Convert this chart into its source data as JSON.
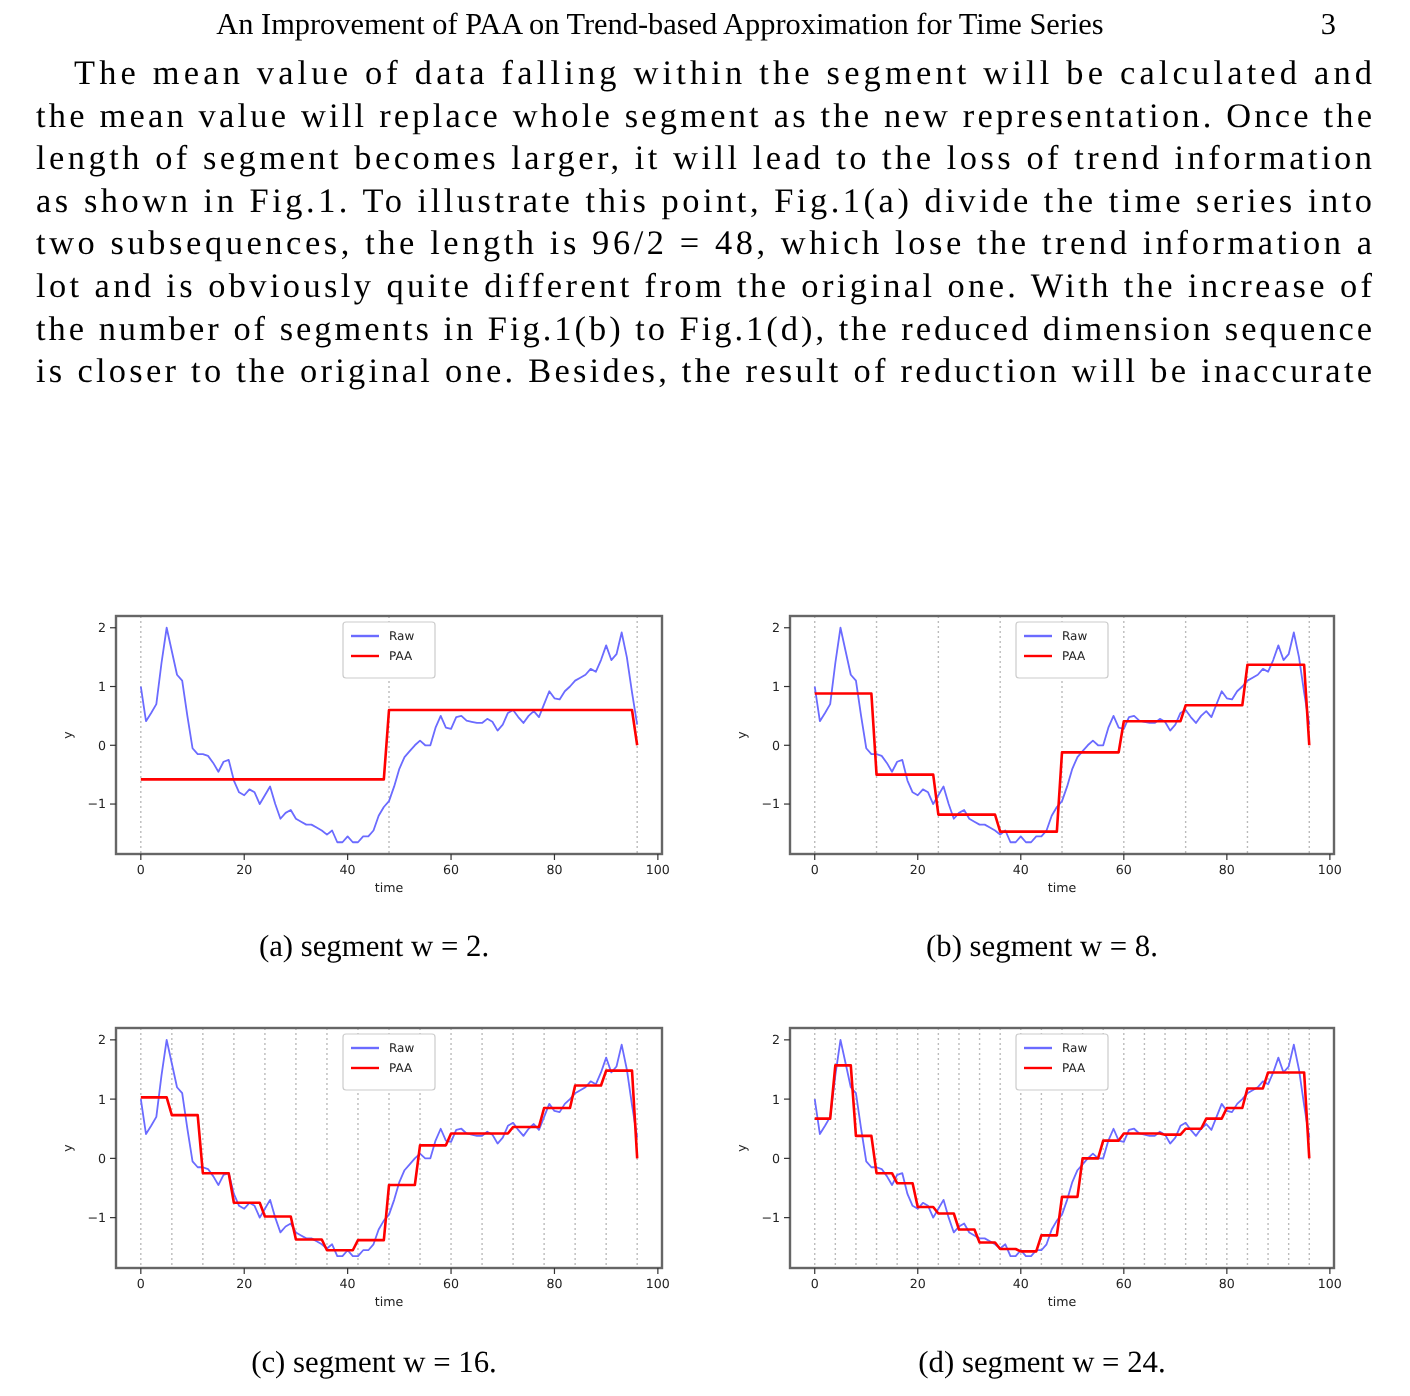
{
  "chart_data": [
    {
      "type": "other",
      "title": "An Improvement of PAA on Trend-based Approximation for Time Series",
      "subtitle": "3",
      "annotations": [
        "The mean value of data falling within the segment will be calculated and",
        "the mean value will replace whole segment as the new representation. Once the",
        "length of segment becomes larger, it will lead to the loss of trend information",
        "as shown in Fig.1. To illustrate this point, Fig.1(a) divide the time series into",
        "two subsequences, the length is 96/2 = 48, which lose the trend information a",
        "lot and is obviously quite different from the original one. With the increase of",
        "the number of segments in Fig.1(b) to Fig.1(d), the reduced dimension sequence",
        "is closer to the original one. Besides, the result of reduction will be inaccurate"
      ]
    },
    {
      "type": "line",
      "xlabel": "time",
      "ylabel": "y",
      "annotations": [
        "(a) segment w = 2."
      ],
      "legend": "top",
      "grid": false,
      "xlim": [
        -4.8,
        100.8
      ],
      "ylim": [
        -1.85,
        2.2
      ],
      "xticks": [
        0,
        20,
        40,
        60,
        80,
        100
      ],
      "yticks": [
        -1,
        0,
        1,
        2
      ],
      "x": [
        0,
        1,
        2,
        3,
        4,
        5,
        6,
        7,
        8,
        9,
        10,
        11,
        12,
        13,
        14,
        15,
        16,
        17,
        18,
        19,
        20,
        21,
        22,
        23,
        24,
        25,
        26,
        27,
        28,
        29,
        30,
        31,
        32,
        33,
        34,
        35,
        36,
        37,
        38,
        39,
        40,
        41,
        42,
        43,
        44,
        45,
        46,
        47,
        48,
        49,
        50,
        51,
        52,
        53,
        54,
        55,
        56,
        57,
        58,
        59,
        60,
        61,
        62,
        63,
        64,
        65,
        66,
        67,
        68,
        69,
        70,
        71,
        72,
        73,
        74,
        75,
        76,
        77,
        78,
        79,
        80,
        81,
        82,
        83,
        84,
        85,
        86,
        87,
        88,
        89,
        90,
        91,
        92,
        93,
        94,
        95,
        96
      ],
      "ref_lines": [
        {
          "axis": "x",
          "value": 0,
          "color": "#bbbbbb",
          "line_style": "dotted"
        },
        {
          "axis": "x",
          "value": 48,
          "color": "#bbbbbb",
          "line_style": "dotted"
        },
        {
          "axis": "x",
          "value": 96,
          "color": "#bbbbbb",
          "line_style": "dotted"
        }
      ],
      "series": [
        {
          "name": "Raw",
          "color": "#6b6bff",
          "values": [
            1.0,
            0.41,
            0.55,
            0.7,
            1.4,
            2.0,
            1.6,
            1.2,
            1.1,
            0.5,
            -0.05,
            -0.15,
            -0.15,
            -0.18,
            -0.3,
            -0.45,
            -0.28,
            -0.25,
            -0.6,
            -0.8,
            -0.85,
            -0.75,
            -0.8,
            -1.0,
            -0.85,
            -0.7,
            -1.0,
            -1.25,
            -1.15,
            -1.1,
            -1.25,
            -1.3,
            -1.35,
            -1.35,
            -1.4,
            -1.45,
            -1.52,
            -1.45,
            -1.65,
            -1.65,
            -1.55,
            -1.65,
            -1.65,
            -1.55,
            -1.55,
            -1.45,
            -1.2,
            -1.05,
            -0.95,
            -0.7,
            -0.4,
            -0.2,
            -0.1,
            0.0,
            0.08,
            0.0,
            0.0,
            0.3,
            0.5,
            0.3,
            0.28,
            0.48,
            0.5,
            0.42,
            0.4,
            0.38,
            0.38,
            0.45,
            0.4,
            0.25,
            0.35,
            0.55,
            0.6,
            0.48,
            0.38,
            0.5,
            0.58,
            0.48,
            0.7,
            0.92,
            0.8,
            0.78,
            0.92,
            1.0,
            1.1,
            1.15,
            1.2,
            1.3,
            1.25,
            1.45,
            1.7,
            1.45,
            1.55,
            1.92,
            1.5,
            0.9,
            0.35
          ]
        },
        {
          "name": "PAA",
          "color": "#ff0000",
          "x": [
            0,
            47,
            48,
            95,
            96
          ],
          "values": [
            -0.58,
            -0.58,
            0.6,
            0.6,
            0
          ]
        }
      ]
    },
    {
      "type": "line",
      "xlabel": "time",
      "ylabel": "y",
      "annotations": [
        "(b) segment w = 8."
      ],
      "legend": "top",
      "grid": false,
      "xlim": [
        -4.8,
        100.8
      ],
      "ylim": [
        -1.85,
        2.2
      ],
      "xticks": [
        0,
        20,
        40,
        60,
        80,
        100
      ],
      "yticks": [
        -1,
        0,
        1,
        2
      ],
      "x": [
        0,
        1,
        2,
        3,
        4,
        5,
        6,
        7,
        8,
        9,
        10,
        11,
        12,
        13,
        14,
        15,
        16,
        17,
        18,
        19,
        20,
        21,
        22,
        23,
        24,
        25,
        26,
        27,
        28,
        29,
        30,
        31,
        32,
        33,
        34,
        35,
        36,
        37,
        38,
        39,
        40,
        41,
        42,
        43,
        44,
        45,
        46,
        47,
        48,
        49,
        50,
        51,
        52,
        53,
        54,
        55,
        56,
        57,
        58,
        59,
        60,
        61,
        62,
        63,
        64,
        65,
        66,
        67,
        68,
        69,
        70,
        71,
        72,
        73,
        74,
        75,
        76,
        77,
        78,
        79,
        80,
        81,
        82,
        83,
        84,
        85,
        86,
        87,
        88,
        89,
        90,
        91,
        92,
        93,
        94,
        95,
        96
      ],
      "ref_lines": [
        {
          "axis": "x",
          "value": 0,
          "color": "#bbbbbb",
          "line_style": "dotted"
        },
        {
          "axis": "x",
          "value": 12,
          "color": "#bbbbbb",
          "line_style": "dotted"
        },
        {
          "axis": "x",
          "value": 24,
          "color": "#bbbbbb",
          "line_style": "dotted"
        },
        {
          "axis": "x",
          "value": 36,
          "color": "#bbbbbb",
          "line_style": "dotted"
        },
        {
          "axis": "x",
          "value": 48,
          "color": "#bbbbbb",
          "line_style": "dotted"
        },
        {
          "axis": "x",
          "value": 60,
          "color": "#bbbbbb",
          "line_style": "dotted"
        },
        {
          "axis": "x",
          "value": 72,
          "color": "#bbbbbb",
          "line_style": "dotted"
        },
        {
          "axis": "x",
          "value": 84,
          "color": "#bbbbbb",
          "line_style": "dotted"
        },
        {
          "axis": "x",
          "value": 96,
          "color": "#bbbbbb",
          "line_style": "dotted"
        }
      ],
      "series": [
        {
          "name": "Raw",
          "color": "#6b6bff",
          "values": [
            1.0,
            0.41,
            0.55,
            0.7,
            1.4,
            2.0,
            1.6,
            1.2,
            1.1,
            0.5,
            -0.05,
            -0.15,
            -0.15,
            -0.18,
            -0.3,
            -0.45,
            -0.28,
            -0.25,
            -0.6,
            -0.8,
            -0.85,
            -0.75,
            -0.8,
            -1.0,
            -0.85,
            -0.7,
            -1.0,
            -1.25,
            -1.15,
            -1.1,
            -1.25,
            -1.3,
            -1.35,
            -1.35,
            -1.4,
            -1.45,
            -1.52,
            -1.45,
            -1.65,
            -1.65,
            -1.55,
            -1.65,
            -1.65,
            -1.55,
            -1.55,
            -1.45,
            -1.2,
            -1.05,
            -0.95,
            -0.7,
            -0.4,
            -0.2,
            -0.1,
            0.0,
            0.08,
            0.0,
            0.0,
            0.3,
            0.5,
            0.3,
            0.28,
            0.48,
            0.5,
            0.42,
            0.4,
            0.38,
            0.38,
            0.45,
            0.4,
            0.25,
            0.35,
            0.55,
            0.6,
            0.48,
            0.38,
            0.5,
            0.58,
            0.48,
            0.7,
            0.92,
            0.8,
            0.78,
            0.92,
            1.0,
            1.1,
            1.15,
            1.2,
            1.3,
            1.25,
            1.45,
            1.7,
            1.45,
            1.55,
            1.92,
            1.5,
            0.9,
            0.35
          ]
        },
        {
          "name": "PAA",
          "color": "#ff0000",
          "x": [
            0,
            11,
            12,
            23,
            24,
            35,
            36,
            47,
            48,
            59,
            60,
            71,
            72,
            83,
            84,
            95,
            96
          ],
          "values": [
            0.88,
            0.88,
            -0.5,
            -0.5,
            -1.18,
            -1.18,
            -1.47,
            -1.47,
            -0.12,
            -0.12,
            0.41,
            0.41,
            0.68,
            0.68,
            1.37,
            1.37,
            0
          ]
        }
      ]
    },
    {
      "type": "line",
      "xlabel": "time",
      "ylabel": "y",
      "annotations": [
        "(c) segment w = 16."
      ],
      "legend": "top",
      "grid": false,
      "xlim": [
        -4.8,
        100.8
      ],
      "ylim": [
        -1.85,
        2.2
      ],
      "xticks": [
        0,
        20,
        40,
        60,
        80,
        100
      ],
      "yticks": [
        -1,
        0,
        1,
        2
      ],
      "x": [
        0,
        1,
        2,
        3,
        4,
        5,
        6,
        7,
        8,
        9,
        10,
        11,
        12,
        13,
        14,
        15,
        16,
        17,
        18,
        19,
        20,
        21,
        22,
        23,
        24,
        25,
        26,
        27,
        28,
        29,
        30,
        31,
        32,
        33,
        34,
        35,
        36,
        37,
        38,
        39,
        40,
        41,
        42,
        43,
        44,
        45,
        46,
        47,
        48,
        49,
        50,
        51,
        52,
        53,
        54,
        55,
        56,
        57,
        58,
        59,
        60,
        61,
        62,
        63,
        64,
        65,
        66,
        67,
        68,
        69,
        70,
        71,
        72,
        73,
        74,
        75,
        76,
        77,
        78,
        79,
        80,
        81,
        82,
        83,
        84,
        85,
        86,
        87,
        88,
        89,
        90,
        91,
        92,
        93,
        94,
        95,
        96
      ],
      "ref_lines": [
        {
          "axis": "x",
          "value": 0,
          "color": "#bbbbbb",
          "line_style": "dotted"
        },
        {
          "axis": "x",
          "value": 6,
          "color": "#bbbbbb",
          "line_style": "dotted"
        },
        {
          "axis": "x",
          "value": 12,
          "color": "#bbbbbb",
          "line_style": "dotted"
        },
        {
          "axis": "x",
          "value": 18,
          "color": "#bbbbbb",
          "line_style": "dotted"
        },
        {
          "axis": "x",
          "value": 24,
          "color": "#bbbbbb",
          "line_style": "dotted"
        },
        {
          "axis": "x",
          "value": 30,
          "color": "#bbbbbb",
          "line_style": "dotted"
        },
        {
          "axis": "x",
          "value": 36,
          "color": "#bbbbbb",
          "line_style": "dotted"
        },
        {
          "axis": "x",
          "value": 42,
          "color": "#bbbbbb",
          "line_style": "dotted"
        },
        {
          "axis": "x",
          "value": 48,
          "color": "#bbbbbb",
          "line_style": "dotted"
        },
        {
          "axis": "x",
          "value": 54,
          "color": "#bbbbbb",
          "line_style": "dotted"
        },
        {
          "axis": "x",
          "value": 60,
          "color": "#bbbbbb",
          "line_style": "dotted"
        },
        {
          "axis": "x",
          "value": 66,
          "color": "#bbbbbb",
          "line_style": "dotted"
        },
        {
          "axis": "x",
          "value": 72,
          "color": "#bbbbbb",
          "line_style": "dotted"
        },
        {
          "axis": "x",
          "value": 78,
          "color": "#bbbbbb",
          "line_style": "dotted"
        },
        {
          "axis": "x",
          "value": 84,
          "color": "#bbbbbb",
          "line_style": "dotted"
        },
        {
          "axis": "x",
          "value": 90,
          "color": "#bbbbbb",
          "line_style": "dotted"
        },
        {
          "axis": "x",
          "value": 96,
          "color": "#bbbbbb",
          "line_style": "dotted"
        }
      ],
      "series": [
        {
          "name": "Raw",
          "color": "#6b6bff",
          "values": [
            1.0,
            0.41,
            0.55,
            0.7,
            1.4,
            2.0,
            1.6,
            1.2,
            1.1,
            0.5,
            -0.05,
            -0.15,
            -0.15,
            -0.18,
            -0.3,
            -0.45,
            -0.28,
            -0.25,
            -0.6,
            -0.8,
            -0.85,
            -0.75,
            -0.8,
            -1.0,
            -0.85,
            -0.7,
            -1.0,
            -1.25,
            -1.15,
            -1.1,
            -1.25,
            -1.3,
            -1.35,
            -1.35,
            -1.4,
            -1.45,
            -1.52,
            -1.45,
            -1.65,
            -1.65,
            -1.55,
            -1.65,
            -1.65,
            -1.55,
            -1.55,
            -1.45,
            -1.2,
            -1.05,
            -0.95,
            -0.7,
            -0.4,
            -0.2,
            -0.1,
            0.0,
            0.08,
            0.0,
            0.0,
            0.3,
            0.5,
            0.3,
            0.28,
            0.48,
            0.5,
            0.42,
            0.4,
            0.38,
            0.38,
            0.45,
            0.4,
            0.25,
            0.35,
            0.55,
            0.6,
            0.48,
            0.38,
            0.5,
            0.58,
            0.48,
            0.7,
            0.92,
            0.8,
            0.78,
            0.92,
            1.0,
            1.1,
            1.15,
            1.2,
            1.3,
            1.25,
            1.45,
            1.7,
            1.45,
            1.55,
            1.92,
            1.5,
            0.9,
            0.35
          ]
        },
        {
          "name": "PAA",
          "color": "#ff0000",
          "x": [
            0,
            5,
            6,
            11,
            12,
            17,
            18,
            23,
            24,
            29,
            30,
            35,
            36,
            41,
            42,
            47,
            48,
            53,
            54,
            59,
            60,
            65,
            66,
            71,
            72,
            77,
            78,
            83,
            84,
            89,
            90,
            95,
            96
          ],
          "values": [
            1.03,
            1.03,
            0.73,
            0.73,
            -0.25,
            -0.25,
            -0.75,
            -0.75,
            -0.98,
            -0.98,
            -1.37,
            -1.37,
            -1.55,
            -1.55,
            -1.38,
            -1.38,
            -0.45,
            -0.45,
            0.22,
            0.22,
            0.42,
            0.42,
            0.42,
            0.42,
            0.53,
            0.53,
            0.85,
            0.85,
            1.23,
            1.23,
            1.48,
            1.48,
            0
          ]
        }
      ]
    },
    {
      "type": "line",
      "xlabel": "time",
      "ylabel": "y",
      "annotations": [
        "(d) segment w = 24."
      ],
      "legend": "top",
      "grid": false,
      "xlim": [
        -4.8,
        100.8
      ],
      "ylim": [
        -1.85,
        2.2
      ],
      "xticks": [
        0,
        20,
        40,
        60,
        80,
        100
      ],
      "yticks": [
        -1,
        0,
        1,
        2
      ],
      "x": [
        0,
        1,
        2,
        3,
        4,
        5,
        6,
        7,
        8,
        9,
        10,
        11,
        12,
        13,
        14,
        15,
        16,
        17,
        18,
        19,
        20,
        21,
        22,
        23,
        24,
        25,
        26,
        27,
        28,
        29,
        30,
        31,
        32,
        33,
        34,
        35,
        36,
        37,
        38,
        39,
        40,
        41,
        42,
        43,
        44,
        45,
        46,
        47,
        48,
        49,
        50,
        51,
        52,
        53,
        54,
        55,
        56,
        57,
        58,
        59,
        60,
        61,
        62,
        63,
        64,
        65,
        66,
        67,
        68,
        69,
        70,
        71,
        72,
        73,
        74,
        75,
        76,
        77,
        78,
        79,
        80,
        81,
        82,
        83,
        84,
        85,
        86,
        87,
        88,
        89,
        90,
        91,
        92,
        93,
        94,
        95,
        96
      ],
      "ref_lines": [
        {
          "axis": "x",
          "value": 0,
          "color": "#bbbbbb",
          "line_style": "dotted"
        },
        {
          "axis": "x",
          "value": 4,
          "color": "#bbbbbb",
          "line_style": "dotted"
        },
        {
          "axis": "x",
          "value": 8,
          "color": "#bbbbbb",
          "line_style": "dotted"
        },
        {
          "axis": "x",
          "value": 12,
          "color": "#bbbbbb",
          "line_style": "dotted"
        },
        {
          "axis": "x",
          "value": 16,
          "color": "#bbbbbb",
          "line_style": "dotted"
        },
        {
          "axis": "x",
          "value": 20,
          "color": "#bbbbbb",
          "line_style": "dotted"
        },
        {
          "axis": "x",
          "value": 24,
          "color": "#bbbbbb",
          "line_style": "dotted"
        },
        {
          "axis": "x",
          "value": 28,
          "color": "#bbbbbb",
          "line_style": "dotted"
        },
        {
          "axis": "x",
          "value": 32,
          "color": "#bbbbbb",
          "line_style": "dotted"
        },
        {
          "axis": "x",
          "value": 36,
          "color": "#bbbbbb",
          "line_style": "dotted"
        },
        {
          "axis": "x",
          "value": 40,
          "color": "#bbbbbb",
          "line_style": "dotted"
        },
        {
          "axis": "x",
          "value": 44,
          "color": "#bbbbbb",
          "line_style": "dotted"
        },
        {
          "axis": "x",
          "value": 48,
          "color": "#bbbbbb",
          "line_style": "dotted"
        },
        {
          "axis": "x",
          "value": 52,
          "color": "#bbbbbb",
          "line_style": "dotted"
        },
        {
          "axis": "x",
          "value": 56,
          "color": "#bbbbbb",
          "line_style": "dotted"
        },
        {
          "axis": "x",
          "value": 60,
          "color": "#bbbbbb",
          "line_style": "dotted"
        },
        {
          "axis": "x",
          "value": 64,
          "color": "#bbbbbb",
          "line_style": "dotted"
        },
        {
          "axis": "x",
          "value": 68,
          "color": "#bbbbbb",
          "line_style": "dotted"
        },
        {
          "axis": "x",
          "value": 72,
          "color": "#bbbbbb",
          "line_style": "dotted"
        },
        {
          "axis": "x",
          "value": 76,
          "color": "#bbbbbb",
          "line_style": "dotted"
        },
        {
          "axis": "x",
          "value": 80,
          "color": "#bbbbbb",
          "line_style": "dotted"
        },
        {
          "axis": "x",
          "value": 84,
          "color": "#bbbbbb",
          "line_style": "dotted"
        },
        {
          "axis": "x",
          "value": 88,
          "color": "#bbbbbb",
          "line_style": "dotted"
        },
        {
          "axis": "x",
          "value": 92,
          "color": "#bbbbbb",
          "line_style": "dotted"
        },
        {
          "axis": "x",
          "value": 96,
          "color": "#bbbbbb",
          "line_style": "dotted"
        }
      ],
      "series": [
        {
          "name": "Raw",
          "color": "#6b6bff",
          "values": [
            1.0,
            0.41,
            0.55,
            0.7,
            1.4,
            2.0,
            1.6,
            1.2,
            1.1,
            0.5,
            -0.05,
            -0.15,
            -0.15,
            -0.18,
            -0.3,
            -0.45,
            -0.28,
            -0.25,
            -0.6,
            -0.8,
            -0.85,
            -0.75,
            -0.8,
            -1.0,
            -0.85,
            -0.7,
            -1.0,
            -1.25,
            -1.15,
            -1.1,
            -1.25,
            -1.3,
            -1.35,
            -1.35,
            -1.4,
            -1.45,
            -1.52,
            -1.45,
            -1.65,
            -1.65,
            -1.55,
            -1.65,
            -1.65,
            -1.55,
            -1.55,
            -1.45,
            -1.2,
            -1.05,
            -0.95,
            -0.7,
            -0.4,
            -0.2,
            -0.1,
            0.0,
            0.08,
            0.0,
            0.0,
            0.3,
            0.5,
            0.3,
            0.28,
            0.48,
            0.5,
            0.42,
            0.4,
            0.38,
            0.38,
            0.45,
            0.4,
            0.25,
            0.35,
            0.55,
            0.6,
            0.48,
            0.38,
            0.5,
            0.58,
            0.48,
            0.7,
            0.92,
            0.8,
            0.78,
            0.92,
            1.0,
            1.1,
            1.15,
            1.2,
            1.3,
            1.25,
            1.45,
            1.7,
            1.45,
            1.55,
            1.92,
            1.5,
            0.9,
            0.35
          ]
        },
        {
          "name": "PAA",
          "color": "#ff0000",
          "x": [
            0,
            3,
            4,
            7,
            8,
            11,
            12,
            15,
            16,
            19,
            20,
            23,
            24,
            27,
            28,
            31,
            32,
            35,
            36,
            39,
            40,
            43,
            44,
            47,
            48,
            51,
            52,
            55,
            56,
            59,
            60,
            63,
            64,
            67,
            68,
            71,
            72,
            75,
            76,
            79,
            80,
            83,
            84,
            87,
            88,
            91,
            92,
            95,
            96
          ],
          "values": [
            0.67,
            0.67,
            1.57,
            1.57,
            0.38,
            0.38,
            -0.25,
            -0.25,
            -0.42,
            -0.42,
            -0.82,
            -0.82,
            -0.93,
            -0.93,
            -1.2,
            -1.2,
            -1.42,
            -1.42,
            -1.53,
            -1.53,
            -1.57,
            -1.57,
            -1.3,
            -1.3,
            -0.65,
            -0.65,
            0.0,
            0.0,
            0.3,
            0.3,
            0.42,
            0.42,
            0.42,
            0.42,
            0.4,
            0.4,
            0.5,
            0.5,
            0.67,
            0.67,
            0.85,
            0.85,
            1.18,
            1.18,
            1.45,
            1.45,
            1.45,
            1.45,
            0
          ]
        }
      ]
    }
  ]
}
